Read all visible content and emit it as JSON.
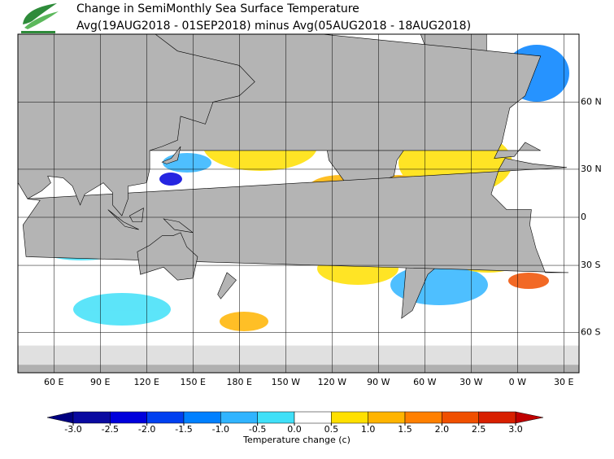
{
  "header": {
    "title": "Change in SemiMonthly Sea Surface Temperature",
    "subtitle": "Avg(19AUG2018 - 01SEP2018) minus Avg(05AUG2018 - 18AUG2018)"
  },
  "map": {
    "lon_ticks": [
      {
        "value": 60,
        "label": "60 E"
      },
      {
        "value": 90,
        "label": "90 E"
      },
      {
        "value": 120,
        "label": "120 E"
      },
      {
        "value": 150,
        "label": "150 E"
      },
      {
        "value": 180,
        "label": "180 E"
      },
      {
        "value": -150,
        "label": "150 W"
      },
      {
        "value": -120,
        "label": "120 W"
      },
      {
        "value": -90,
        "label": "90 W"
      },
      {
        "value": -60,
        "label": "60 W"
      },
      {
        "value": -30,
        "label": "30 W"
      },
      {
        "value": 0,
        "label": "0 W"
      },
      {
        "value": 30,
        "label": "30 E"
      }
    ],
    "lat_ticks": [
      {
        "value": 60,
        "label": "60 N"
      },
      {
        "value": 30,
        "label": "30 N"
      },
      {
        "value": 0,
        "label": "0"
      },
      {
        "value": -30,
        "label": "30 S"
      },
      {
        "value": -60,
        "label": "60 S"
      }
    ]
  },
  "colorbar": {
    "label": "Temperature change (c)",
    "ticks": [
      {
        "value": -3,
        "label": "-3.0"
      },
      {
        "value": -2.5,
        "label": "-2.5"
      },
      {
        "value": -2,
        "label": "-2.0"
      },
      {
        "value": -1.5,
        "label": "-1.5"
      },
      {
        "value": -1,
        "label": "-1.0"
      },
      {
        "value": -0.5,
        "label": "-0.5"
      },
      {
        "value": 0,
        "label": "0.0"
      },
      {
        "value": 0.5,
        "label": "0.5"
      },
      {
        "value": 1,
        "label": "1.0"
      },
      {
        "value": 1.5,
        "label": "1.5"
      },
      {
        "value": 2,
        "label": "2.0"
      },
      {
        "value": 2.5,
        "label": "2.5"
      },
      {
        "value": 3,
        "label": "3.0"
      }
    ],
    "colors": [
      "#0a0aa0",
      "#0000dc",
      "#0040f0",
      "#0080ff",
      "#30b4ff",
      "#40e0f8",
      "#ffffff",
      "#ffe000",
      "#ffb400",
      "#ff8000",
      "#f05000",
      "#d82000"
    ],
    "low_color": "#000080",
    "high_color": "#c00000"
  }
}
